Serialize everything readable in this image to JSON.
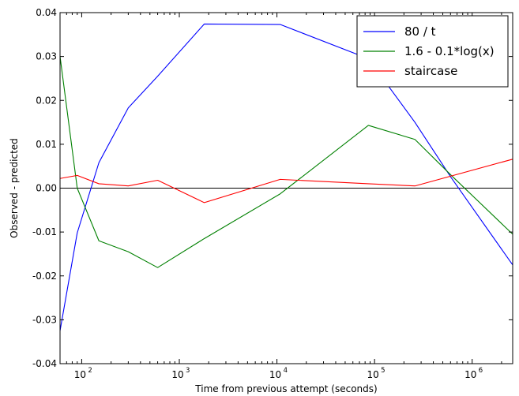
{
  "chart_data": {
    "type": "line",
    "xscale": "log",
    "xlabel": "Time from previous attempt (seconds)",
    "ylabel": "Observed - predicted",
    "xlim": [
      60,
      2600000
    ],
    "ylim": [
      -0.04,
      0.04
    ],
    "x_tick_labels": [
      {
        "base": "10",
        "exp": "2",
        "value": 100
      },
      {
        "base": "10",
        "exp": "3",
        "value": 1000
      },
      {
        "base": "10",
        "exp": "4",
        "value": 10000
      },
      {
        "base": "10",
        "exp": "5",
        "value": 100000
      },
      {
        "base": "10",
        "exp": "6",
        "value": 1000000
      }
    ],
    "y_tick_labels": [
      "0.04",
      "0.03",
      "0.02",
      "0.01",
      "0.00",
      "-0.01",
      "-0.02",
      "-0.03",
      "-0.04"
    ],
    "y_tick_values": [
      0.04,
      0.03,
      0.02,
      0.01,
      0.0,
      -0.01,
      -0.02,
      -0.03,
      -0.04
    ],
    "zero_line": true,
    "grid": false,
    "legend_position": "top-right",
    "series": [
      {
        "name": "80 / t",
        "color": "#0000ff",
        "x": [
          60,
          90,
          150,
          300,
          600,
          1800,
          10800,
          86400,
          259200,
          604800,
          2600000
        ],
        "y": [
          -0.0325,
          -0.0102,
          0.0058,
          0.0183,
          0.0255,
          0.0374,
          0.0373,
          0.0295,
          0.015,
          0.0025,
          -0.0175
        ]
      },
      {
        "name": "1.6 - 0.1*log(x)",
        "color": "#008000",
        "x": [
          60,
          90,
          150,
          300,
          600,
          1800,
          10800,
          86400,
          259200,
          604800,
          2600000
        ],
        "y": [
          0.03,
          0.0,
          -0.012,
          -0.0145,
          -0.0181,
          -0.0115,
          -0.0013,
          0.0143,
          0.0111,
          0.003,
          -0.0105
        ]
      },
      {
        "name": "staircase",
        "color": "#ff0000",
        "x": [
          60,
          90,
          150,
          300,
          600,
          1800,
          10800,
          86400,
          259200,
          2600000
        ],
        "y": [
          0.0022,
          0.0029,
          0.001,
          0.0005,
          0.0018,
          -0.0033,
          0.002,
          0.001,
          0.0005,
          0.0066
        ]
      }
    ]
  }
}
